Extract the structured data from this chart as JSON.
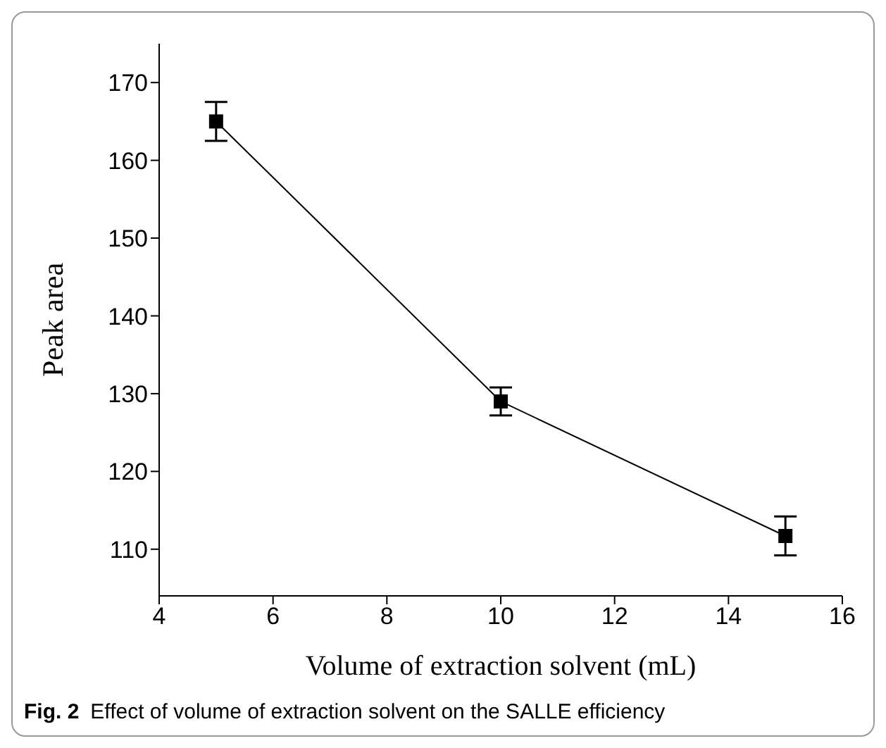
{
  "chart_data": {
    "type": "line",
    "xlabel": "Volume of extraction solvent (mL)",
    "ylabel": "Peak area",
    "x": [
      5,
      10,
      15
    ],
    "series": [
      {
        "color": "#000000",
        "values": [
          165,
          129,
          111.7
        ],
        "errors": [
          2.5,
          1.8,
          2.5
        ]
      }
    ],
    "xlim": [
      4,
      16
    ],
    "xticks": [
      4,
      6,
      8,
      10,
      12,
      14,
      16
    ],
    "ylim": [
      104,
      175
    ],
    "yticks": [
      110,
      120,
      130,
      140,
      150,
      160,
      170
    ],
    "marker": "square",
    "line_style": "solid",
    "grid": false,
    "legend": false,
    "annotations": [
      "Fig. 2",
      "Effect of volume of extraction solvent on the SALLE efficiency"
    ]
  }
}
